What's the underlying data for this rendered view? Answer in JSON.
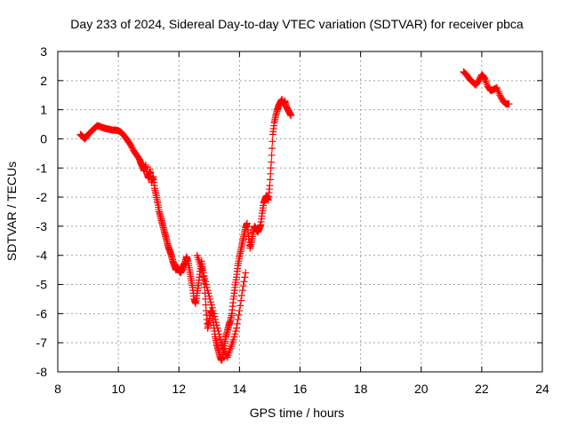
{
  "chart_data": {
    "type": "scatter",
    "title": "Day 233 of 2024, Sidereal Day-to-day VTEC variation (SDTVAR) for receiver pbca",
    "xlabel": "GPS time / hours",
    "ylabel": "SDTVAR / TECUs",
    "xlim": [
      8,
      24
    ],
    "ylim": [
      -8,
      3
    ],
    "x_ticks": [
      8,
      10,
      12,
      14,
      16,
      18,
      20,
      22,
      24
    ],
    "y_ticks": [
      -8,
      -7,
      -6,
      -5,
      -4,
      -3,
      -2,
      -1,
      0,
      1,
      2,
      3
    ],
    "grid": true,
    "marker": "+",
    "series_color": "#ff0000",
    "series": [
      {
        "name": "pbca",
        "segments": [
          {
            "x": [
              8.75,
              8.8,
              8.85,
              8.9,
              9.0,
              9.1,
              9.2,
              9.3,
              9.4,
              9.5,
              9.6,
              9.7,
              9.8,
              9.9,
              10.0,
              10.1,
              10.2,
              10.3,
              10.4,
              10.5,
              10.6,
              10.7,
              10.75,
              10.8,
              10.85,
              10.9,
              10.95,
              11.0,
              11.05,
              11.1,
              11.15,
              11.2,
              11.25,
              11.3,
              11.35,
              11.4,
              11.45,
              11.5,
              11.55,
              11.6,
              11.65,
              11.7,
              11.75,
              11.8,
              11.85,
              11.9,
              11.95,
              12.0,
              12.05,
              12.1,
              12.15,
              12.2,
              12.25,
              12.3,
              12.35,
              12.4,
              12.45,
              12.5,
              12.55,
              12.6,
              12.65,
              12.7,
              12.75,
              12.8,
              12.85,
              12.9,
              12.95,
              13.0,
              13.05,
              13.1,
              13.15,
              13.2,
              13.25,
              13.3,
              13.35,
              13.4,
              13.45,
              13.5,
              13.55,
              13.6,
              13.65,
              13.7,
              13.75,
              13.8,
              13.85,
              13.9,
              13.95,
              14.0,
              14.05,
              14.1,
              14.15,
              14.2,
              14.25,
              14.3,
              14.35,
              14.4,
              14.45,
              14.5,
              14.55,
              14.6,
              14.65,
              14.7,
              14.75,
              14.8,
              14.85,
              14.9,
              14.95,
              15.0,
              15.05,
              15.1,
              15.15,
              15.2,
              15.25,
              15.3,
              15.35,
              15.4,
              15.45,
              15.5,
              15.55,
              15.6,
              15.65,
              15.7
            ],
            "y": [
              0.15,
              0.1,
              0.05,
              0.0,
              0.15,
              0.25,
              0.35,
              0.45,
              0.42,
              0.38,
              0.35,
              0.33,
              0.3,
              0.3,
              0.28,
              0.22,
              0.1,
              -0.05,
              -0.2,
              -0.4,
              -0.55,
              -0.7,
              -0.85,
              -0.95,
              -1.1,
              -0.9,
              -1.2,
              -1.35,
              -1.05,
              -1.5,
              -1.3,
              -1.7,
              -1.95,
              -2.2,
              -2.5,
              -2.7,
              -2.9,
              -3.1,
              -3.3,
              -3.5,
              -3.7,
              -3.85,
              -4.0,
              -4.2,
              -4.35,
              -4.5,
              -4.4,
              -4.5,
              -4.6,
              -4.5,
              -4.35,
              -4.25,
              -4.05,
              -4.2,
              -4.5,
              -4.8,
              -5.1,
              -5.5,
              -5.65,
              -5.3,
              -4.95,
              -4.55,
              -4.2,
              -4.6,
              -5.1,
              -5.9,
              -6.5,
              -6.25,
              -5.9,
              -6.0,
              -6.4,
              -6.8,
              -7.05,
              -7.25,
              -7.45,
              -7.6,
              -7.5,
              -7.1,
              -6.8,
              -6.6,
              -6.4,
              -6.25,
              -6.0,
              -5.5,
              -5.1,
              -4.75,
              -4.35,
              -4.05,
              -3.8,
              -3.55,
              -3.3,
              -3.05,
              -2.9,
              -3.35,
              -3.75,
              -3.5,
              -3.2,
              -3.0,
              -3.1,
              -3.2,
              -3.1,
              -2.95,
              -2.55,
              -2.2,
              -2.05,
              -1.95,
              -2.1,
              -1.6,
              -0.8,
              0.15,
              0.55,
              0.8,
              1.0,
              1.15,
              1.25,
              1.35,
              1.2,
              1.3,
              1.1,
              1.0,
              0.9,
              0.8
            ],
            "x_secondary": [
              12.6,
              12.7,
              12.8,
              12.9,
              13.0,
              13.1,
              13.2,
              13.3,
              13.4,
              13.5,
              13.6,
              13.7,
              13.8,
              13.9,
              14.0,
              14.1,
              14.2
            ],
            "y_secondary": [
              -4.0,
              -4.3,
              -4.6,
              -5.0,
              -5.4,
              -5.8,
              -6.2,
              -6.6,
              -7.0,
              -7.3,
              -7.5,
              -7.2,
              -6.9,
              -6.5,
              -5.9,
              -5.2,
              -4.6
            ]
          },
          {
            "x": [
              21.4,
              21.5,
              21.6,
              21.7,
              21.8,
              21.9,
              22.0,
              22.05,
              22.1,
              22.2,
              22.3,
              22.4,
              22.5,
              22.6,
              22.7,
              22.8,
              22.9
            ],
            "y": [
              2.3,
              2.2,
              2.05,
              1.95,
              1.85,
              2.0,
              2.2,
              2.15,
              2.05,
              1.8,
              1.65,
              1.7,
              1.75,
              1.5,
              1.3,
              1.2,
              1.2
            ]
          }
        ]
      }
    ]
  }
}
